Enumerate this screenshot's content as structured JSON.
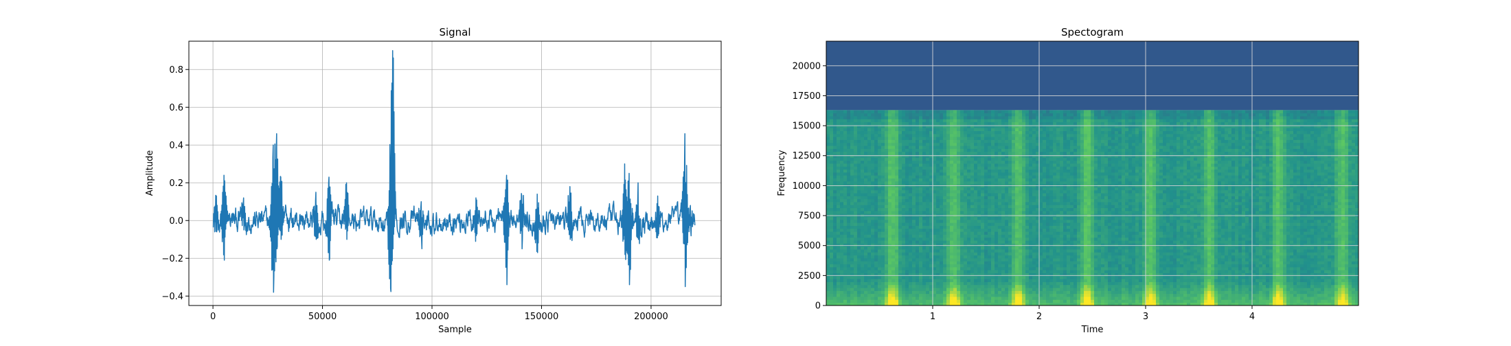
{
  "chart_data": [
    {
      "type": "line",
      "title": "Signal",
      "xlabel": "Sample",
      "ylabel": "Amplitude",
      "xlim": [
        -11000,
        232000
      ],
      "ylim": [
        -0.45,
        0.95
      ],
      "xticks": [
        0,
        50000,
        100000,
        150000,
        200000
      ],
      "yticks": [
        -0.4,
        -0.2,
        0.0,
        0.2,
        0.4,
        0.6,
        0.8
      ],
      "xtick_labels": [
        "0",
        "50000",
        "100000",
        "150000",
        "200000"
      ],
      "ytick_labels": [
        "−0.4",
        "−0.2",
        "0.0",
        "0.2",
        "0.4",
        "0.6",
        "0.8"
      ],
      "grid": true,
      "color": "#1f77b4",
      "x_range": [
        0,
        220000
      ],
      "baseline_noise_amplitude": 0.04,
      "spikes": [
        {
          "x": 1500,
          "max": 0.13,
          "min": -0.06
        },
        {
          "x": 5000,
          "max": 0.24,
          "min": -0.21
        },
        {
          "x": 14000,
          "max": 0.12,
          "min": -0.05
        },
        {
          "x": 27500,
          "max": 0.4,
          "min": -0.38
        },
        {
          "x": 29000,
          "max": 0.46,
          "min": -0.15
        },
        {
          "x": 31000,
          "max": 0.23,
          "min": -0.1
        },
        {
          "x": 47000,
          "max": 0.15,
          "min": -0.1
        },
        {
          "x": 53000,
          "max": 0.23,
          "min": -0.21
        },
        {
          "x": 61000,
          "max": 0.2,
          "min": -0.1
        },
        {
          "x": 81000,
          "max": 0.3,
          "min": -0.36
        },
        {
          "x": 82000,
          "max": 0.9,
          "min": -0.15
        },
        {
          "x": 95000,
          "max": 0.1,
          "min": -0.1
        },
        {
          "x": 120000,
          "max": 0.12,
          "min": -0.08
        },
        {
          "x": 134000,
          "max": 0.24,
          "min": -0.34
        },
        {
          "x": 141000,
          "max": 0.13,
          "min": -0.15
        },
        {
          "x": 148000,
          "max": 0.14,
          "min": -0.17
        },
        {
          "x": 163000,
          "max": 0.18,
          "min": -0.1
        },
        {
          "x": 188000,
          "max": 0.3,
          "min": -0.18
        },
        {
          "x": 190000,
          "max": 0.25,
          "min": -0.34
        },
        {
          "x": 194000,
          "max": 0.2,
          "min": -0.1
        },
        {
          "x": 203000,
          "max": 0.13,
          "min": -0.08
        },
        {
          "x": 215500,
          "max": 0.46,
          "min": -0.35
        },
        {
          "x": 218000,
          "max": 0.08,
          "min": -0.05
        }
      ]
    },
    {
      "type": "heatmap",
      "title": "Spectogram",
      "xlabel": "Time",
      "ylabel": "Frequency",
      "xlim": [
        0,
        5.0
      ],
      "ylim": [
        0,
        22050
      ],
      "xticks": [
        1,
        2,
        3,
        4
      ],
      "yticks": [
        0,
        2500,
        5000,
        7500,
        10000,
        12500,
        15000,
        17500,
        20000
      ],
      "xtick_labels": [
        "1",
        "2",
        "3",
        "4"
      ],
      "ytick_labels": [
        "0",
        "2500",
        "5000",
        "7500",
        "10000",
        "12500",
        "15000",
        "17500",
        "20000"
      ],
      "grid": true,
      "colormap": "viridis",
      "cutoff_frequency": 16300,
      "above_cutoff_color": "#31588c",
      "bright_bands_time": [
        0.62,
        1.2,
        1.8,
        2.45,
        3.05,
        3.6,
        4.25,
        4.85
      ]
    }
  ]
}
